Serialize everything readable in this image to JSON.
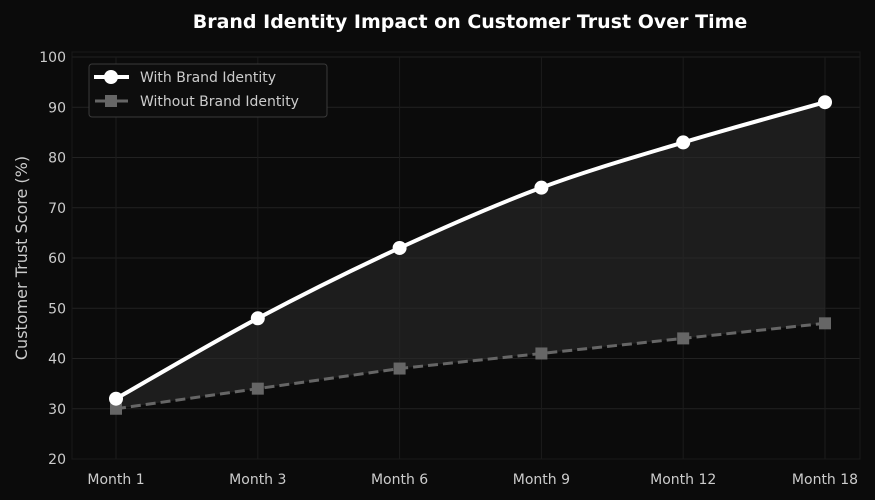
{
  "chart_data": {
    "type": "line",
    "title": "Brand Identity Impact on Customer Trust Over Time",
    "xlabel": "",
    "ylabel": "Customer Trust Score (%)",
    "categories": [
      "Month 1",
      "Month 3",
      "Month 6",
      "Month 9",
      "Month 12",
      "Month 18"
    ],
    "ylim": [
      20,
      100
    ],
    "yticks": [
      20,
      30,
      40,
      50,
      60,
      70,
      80,
      90,
      100
    ],
    "grid": true,
    "legend_position": "top-left",
    "series": [
      {
        "name": "With Brand Identity",
        "values": [
          32,
          48,
          62,
          74,
          83,
          91
        ],
        "color": "#ffffff",
        "marker": "circle",
        "style": "solid"
      },
      {
        "name": "Without Brand Identity",
        "values": [
          30,
          34,
          38,
          41,
          44,
          47
        ],
        "color": "#666666",
        "marker": "square",
        "style": "dashed"
      }
    ],
    "fill_between": {
      "color": "#2a2a2a"
    }
  }
}
